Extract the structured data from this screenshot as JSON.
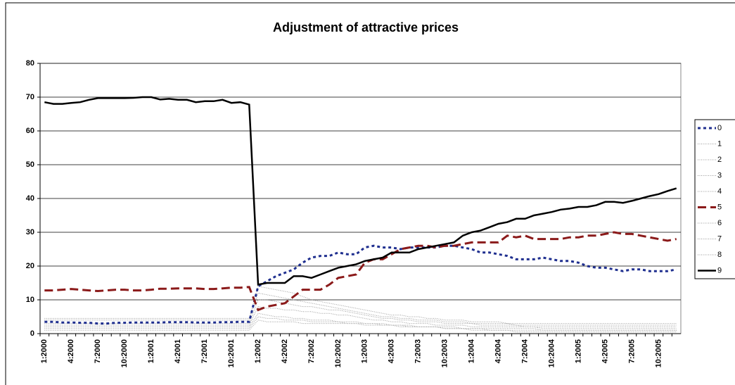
{
  "chart_data": {
    "type": "line",
    "title": "Adjustment of attractive prices",
    "categories": [
      "1:2000",
      null,
      null,
      "4:2000",
      null,
      null,
      "7:2000",
      null,
      null,
      "10:2000",
      null,
      null,
      "1:2001",
      null,
      null,
      "4:2001",
      null,
      null,
      "7:2001",
      null,
      null,
      "10:2001",
      null,
      null,
      "1:2002",
      null,
      null,
      "4:2002",
      null,
      null,
      "7:2002",
      null,
      null,
      "10:2002",
      null,
      null,
      "1:2003",
      null,
      null,
      "4:2003",
      null,
      null,
      "7:2003",
      null,
      null,
      "10:2003",
      null,
      null,
      "1:2004",
      null,
      null,
      "4:2004",
      null,
      null,
      "7:2004",
      null,
      null,
      "10:2004",
      null,
      null,
      "1:2005",
      null,
      null,
      "4:2005",
      null,
      null,
      "7:2005",
      null,
      null,
      "10:2005",
      null,
      null
    ],
    "ylim": [
      0,
      80
    ],
    "yticks": [
      0,
      10,
      20,
      30,
      40,
      50,
      60,
      70,
      80
    ],
    "grid": true,
    "series": [
      {
        "name": "0",
        "color": "#1f2f8f",
        "style": "dotted",
        "width": 3,
        "values": [
          3.5,
          3.5,
          3.3,
          3.3,
          3.2,
          3.2,
          3,
          3,
          3.2,
          3.2,
          3.3,
          3.3,
          3.3,
          3.3,
          3.4,
          3.4,
          3.4,
          3.3,
          3.3,
          3.3,
          3.4,
          3.4,
          3.5,
          3.5,
          14,
          15.5,
          17,
          18,
          19,
          21,
          22.5,
          23,
          23,
          24,
          23.5,
          23.5,
          25.5,
          26,
          25.5,
          25.5,
          25,
          25.5,
          25.5,
          25.5,
          25.5,
          26,
          26,
          25.5,
          25,
          24,
          24,
          23.5,
          23,
          22,
          22,
          22,
          22.5,
          22,
          21.5,
          21.5,
          21,
          20,
          19.5,
          19.5,
          19,
          18.5,
          19,
          19,
          18.5,
          18.5,
          18.5,
          19
        ]
      },
      {
        "name": "1",
        "color": "#9a9a9a",
        "style": "dotted",
        "width": 1,
        "values": [
          4.5,
          4.5,
          4.5,
          4.5,
          4.5,
          4.5,
          4.5,
          4.5,
          4.5,
          4.5,
          4.5,
          4.5,
          4.5,
          4.5,
          4.5,
          4.5,
          4.5,
          4.5,
          4.5,
          4.5,
          4.5,
          4.5,
          4.5,
          4.5,
          14,
          13.5,
          13,
          12.5,
          12,
          11,
          10,
          9.5,
          9,
          8.5,
          8,
          7.5,
          7,
          6.5,
          6,
          5.5,
          5.5,
          5,
          5,
          4.5,
          4.5,
          4,
          4,
          4,
          3.5,
          3.5,
          3.5,
          3.5,
          3,
          3,
          3,
          3,
          3,
          3,
          3,
          3,
          3,
          3,
          3,
          3,
          3,
          3,
          3,
          3,
          3,
          3,
          3,
          3
        ]
      },
      {
        "name": "2",
        "color": "#9a9a9a",
        "style": "dotted",
        "width": 1,
        "values": [
          4,
          4,
          4,
          4,
          4,
          4,
          4,
          4,
          4,
          4,
          4,
          4,
          4,
          4,
          4,
          4,
          4,
          4,
          4,
          4,
          4,
          4,
          4,
          4,
          12,
          11.5,
          11,
          10.5,
          10,
          9.5,
          9,
          8.5,
          8,
          7.5,
          7,
          6.5,
          6,
          5.5,
          5,
          5,
          4.5,
          4.5,
          4,
          4,
          4,
          3.5,
          3.5,
          3.5,
          3,
          3,
          3,
          3,
          3,
          2.5,
          2.5,
          2.5,
          2.5,
          2.5,
          2.5,
          2.5,
          2.5,
          2.5,
          2.5,
          2.5,
          2.5,
          2.5,
          2.5,
          2.5,
          2.5,
          2.5,
          2.5,
          2.5
        ]
      },
      {
        "name": "3",
        "color": "#9a9a9a",
        "style": "dotted",
        "width": 1,
        "values": [
          3,
          3,
          3,
          3,
          3,
          3,
          3,
          3,
          3,
          3,
          3,
          3,
          3,
          3,
          3,
          3,
          3,
          3,
          3,
          3,
          3,
          3,
          3,
          3,
          10,
          10,
          9.5,
          9,
          8.5,
          8,
          8,
          7.5,
          7,
          7,
          6.5,
          6,
          5.5,
          5,
          4.5,
          4.5,
          4,
          4,
          3.5,
          3.5,
          3.5,
          3,
          3,
          3,
          3,
          2.5,
          2.5,
          2.5,
          2.5,
          2.5,
          2,
          2,
          2,
          2,
          2,
          2,
          2,
          2,
          2,
          2,
          2,
          2,
          2,
          2,
          2,
          2,
          2,
          2
        ]
      },
      {
        "name": "4",
        "color": "#9a9a9a",
        "style": "dotted",
        "width": 1,
        "values": [
          2.5,
          2.5,
          2.5,
          2.5,
          2.5,
          2.5,
          2.5,
          2.5,
          2.5,
          2.5,
          2.5,
          2.5,
          2.5,
          2.5,
          2.5,
          2.5,
          2.5,
          2.5,
          2.5,
          2.5,
          2.5,
          2.5,
          2.5,
          2.5,
          8,
          7.5,
          7.5,
          7,
          7,
          6.5,
          6.5,
          6,
          6,
          5.5,
          5.5,
          5,
          4.5,
          4,
          4,
          3.5,
          3.5,
          3,
          3,
          3,
          2.5,
          2.5,
          2.5,
          2.5,
          2,
          2,
          2,
          2,
          2,
          2,
          2,
          2,
          1.5,
          1.5,
          1.5,
          1.5,
          1.5,
          1.5,
          1.5,
          1.5,
          1.5,
          1.5,
          1.5,
          1.5,
          1.5,
          1.5,
          1.5,
          1.5
        ]
      },
      {
        "name": "5",
        "color": "#8b1a1a",
        "style": "dashed",
        "width": 3,
        "values": [
          12.8,
          12.8,
          13,
          13.2,
          13,
          12.8,
          12.6,
          12.8,
          13,
          13,
          12.8,
          12.8,
          13,
          13.3,
          13.3,
          13.4,
          13.4,
          13.4,
          13.2,
          13.2,
          13.4,
          13.6,
          13.6,
          13.8,
          7,
          8,
          8.5,
          9,
          11,
          13,
          13,
          13,
          14.5,
          16.5,
          17,
          17.5,
          21,
          22,
          22,
          23.5,
          25,
          25.5,
          26,
          26,
          25.5,
          26,
          26,
          26.5,
          27,
          27,
          27,
          27,
          29,
          28.5,
          29,
          28,
          28,
          28,
          28,
          28.5,
          28.5,
          29,
          29,
          29.5,
          30,
          29.5,
          29.5,
          29,
          28.5,
          28,
          27.5,
          28
        ]
      },
      {
        "name": "6",
        "color": "#9a9a9a",
        "style": "dotted",
        "width": 1,
        "values": [
          2,
          2,
          2,
          2,
          2,
          2,
          2,
          2,
          2,
          2,
          2,
          2,
          2,
          2,
          2,
          2,
          2,
          2,
          2,
          2,
          2,
          2,
          2,
          2,
          6,
          5.5,
          5,
          5,
          4.5,
          4.5,
          4,
          4,
          4,
          3.5,
          3.5,
          3.5,
          3,
          3,
          3,
          2.5,
          2.5,
          2.5,
          2,
          2,
          2,
          2,
          2,
          1.5,
          1.5,
          1.5,
          1.5,
          1.5,
          1.5,
          1.5,
          1.5,
          1.5,
          1,
          1,
          1,
          1,
          1,
          1,
          1,
          1,
          1,
          1,
          1,
          1,
          1,
          1,
          1,
          1
        ]
      },
      {
        "name": "7",
        "color": "#9a9a9a",
        "style": "dotted",
        "width": 1,
        "values": [
          1.5,
          1.5,
          1.5,
          1.5,
          1.5,
          1.5,
          1.5,
          1.5,
          1.5,
          1.5,
          1.5,
          1.5,
          1.5,
          1.5,
          1.5,
          1.5,
          1.5,
          1.5,
          1.5,
          1.5,
          1.5,
          1.5,
          1.5,
          1.5,
          5,
          4.5,
          4.5,
          4,
          4,
          4,
          3.5,
          3.5,
          3.5,
          3.5,
          3,
          3,
          3,
          3,
          2.5,
          2.5,
          2.5,
          2,
          2,
          2,
          2,
          1.5,
          1.5,
          1.5,
          1.5,
          1.5,
          1,
          1,
          1,
          1,
          1,
          1,
          1,
          1,
          1,
          1,
          1,
          1,
          1,
          1,
          1,
          1,
          1,
          1,
          1,
          1,
          1,
          1
        ]
      },
      {
        "name": "8",
        "color": "#9a9a9a",
        "style": "dotted",
        "width": 1,
        "values": [
          1,
          1,
          1,
          1,
          1,
          1,
          1,
          1,
          1,
          1,
          1,
          1,
          1,
          1,
          1,
          1,
          1,
          1,
          1,
          1,
          1,
          1,
          1,
          1,
          4,
          3.5,
          3.5,
          3.5,
          3.5,
          3,
          3,
          3,
          3,
          3,
          3,
          3,
          2.5,
          2.5,
          2.5,
          2.5,
          2,
          2,
          2,
          2,
          2,
          1.5,
          1.5,
          1.5,
          1,
          1,
          1,
          1,
          1,
          0.5,
          0.5,
          0.5,
          0.5,
          0.5,
          0.5,
          0.5,
          0.5,
          0.5,
          0.5,
          0.5,
          0.5,
          0.5,
          0.5,
          0.5,
          0.5,
          0.5,
          0.5,
          0.5
        ]
      },
      {
        "name": "9",
        "color": "#000000",
        "style": "solid",
        "width": 2.5,
        "values": [
          68.5,
          68,
          68,
          68.3,
          68.5,
          69.2,
          69.7,
          69.7,
          69.7,
          69.7,
          69.8,
          70,
          70,
          69.3,
          69.5,
          69.2,
          69.2,
          68.5,
          68.8,
          68.8,
          69.2,
          68.3,
          68.5,
          67.8,
          14.5,
          15,
          15,
          15,
          17,
          17,
          16.5,
          17.5,
          18.5,
          19.5,
          20,
          20.5,
          21.5,
          22,
          22.5,
          24,
          24,
          24,
          25,
          25.5,
          26,
          26.5,
          27,
          29,
          30,
          30.5,
          31.5,
          32.5,
          33,
          34,
          34,
          35,
          35.5,
          36,
          36.7,
          37,
          37.5,
          37.5,
          38,
          39,
          39,
          38.7,
          39.3,
          40,
          40.7,
          41.3,
          42.2,
          43
        ]
      }
    ]
  }
}
